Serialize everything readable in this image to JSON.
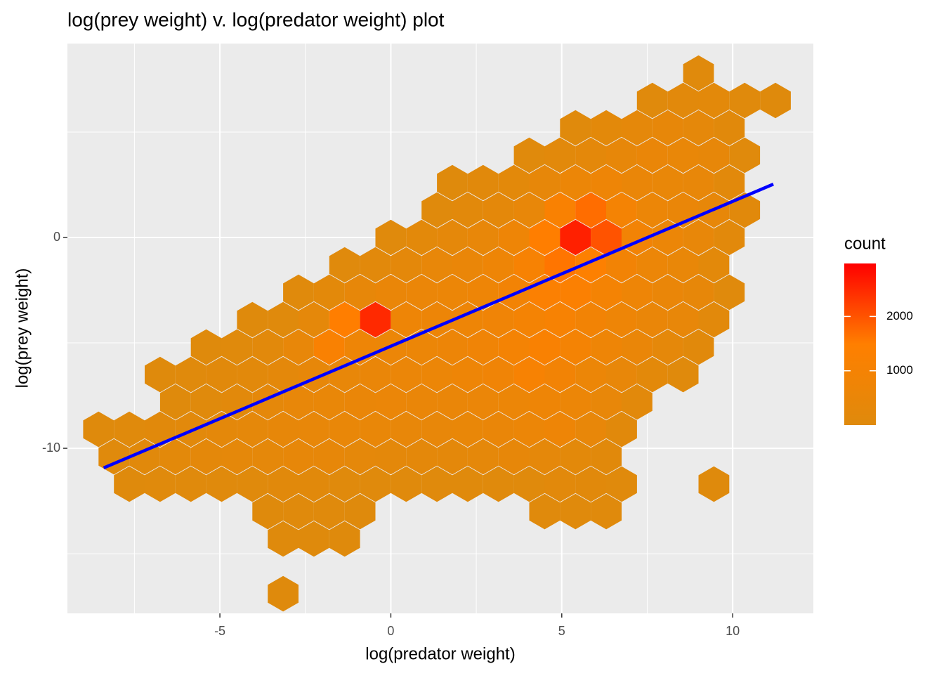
{
  "chart_data": {
    "type": "hexbin",
    "title": "log(prey weight) v. log(predator weight) plot",
    "x_label": "log(predator weight)",
    "y_label": "log(prey weight)",
    "xlim": [
      -9.46,
      12.36
    ],
    "ylim": [
      -17.83,
      9.2
    ],
    "xticks": [
      -5,
      0,
      5,
      10
    ],
    "yticks": [
      -10,
      0
    ],
    "xminor": [
      -7.5,
      -2.5,
      2.5,
      7.5
    ],
    "yminor": [
      -15,
      -5,
      5
    ],
    "grid": true,
    "legend": {
      "title": "count",
      "position": "right",
      "limits": [
        1,
        2975
      ],
      "ticks": [
        1000,
        2000
      ],
      "colors": [
        "#df8a0c",
        "#ff7f00",
        "#ff0000"
      ]
    },
    "rows": [
      {
        "y": 7.8,
        "x": [
          9.0
        ],
        "counts": [
          60
        ]
      },
      {
        "y": 6.5,
        "x": [
          7.65,
          8.55,
          9.45,
          10.35,
          11.25
        ],
        "counts": [
          40,
          150,
          200,
          30,
          10
        ]
      },
      {
        "y": 5.2,
        "x": [
          5.4,
          6.3,
          7.2,
          8.1,
          9.0,
          9.9
        ],
        "counts": [
          40,
          200,
          300,
          350,
          300,
          80
        ]
      },
      {
        "y": 3.9,
        "x": [
          4.05,
          4.95,
          5.85,
          6.75,
          7.65,
          8.55,
          9.45,
          10.35
        ],
        "counts": [
          30,
          150,
          250,
          350,
          500,
          450,
          350,
          60
        ]
      },
      {
        "y": 2.6,
        "x": [
          1.8,
          2.7,
          3.6,
          4.5,
          5.4,
          6.3,
          7.2,
          8.1,
          9.0,
          9.9
        ],
        "counts": [
          20,
          100,
          200,
          350,
          600,
          700,
          500,
          450,
          400,
          150
        ]
      },
      {
        "y": 1.3,
        "x": [
          1.35,
          2.25,
          3.15,
          4.05,
          4.95,
          5.85,
          6.75,
          7.65,
          8.55,
          9.45,
          10.35
        ],
        "counts": [
          30,
          150,
          250,
          400,
          1200,
          1700,
          1000,
          600,
          500,
          350,
          80
        ]
      },
      {
        "y": 0,
        "x": [
          0,
          0.9,
          1.8,
          2.7,
          3.6,
          4.5,
          5.4,
          6.3,
          7.2,
          8.1,
          9.0,
          9.9
        ],
        "counts": [
          50,
          200,
          300,
          400,
          700,
          1500,
          2600,
          2000,
          900,
          600,
          400,
          150
        ]
      },
      {
        "y": -1.3,
        "x": [
          -1.35,
          -0.45,
          0.45,
          1.35,
          2.25,
          3.15,
          4.05,
          4.95,
          5.85,
          6.75,
          7.65,
          8.55,
          9.45
        ],
        "counts": [
          40,
          150,
          250,
          400,
          500,
          700,
          1100,
          1600,
          1400,
          900,
          600,
          450,
          200
        ]
      },
      {
        "y": -2.6,
        "x": [
          -2.7,
          -1.8,
          -0.9,
          0,
          0.9,
          1.8,
          2.7,
          3.6,
          4.5,
          5.4,
          6.3,
          7.2,
          8.1,
          9.0,
          9.9
        ],
        "counts": [
          30,
          200,
          350,
          500,
          550,
          600,
          700,
          900,
          1300,
          1300,
          1000,
          700,
          500,
          350,
          60
        ]
      },
      {
        "y": -3.9,
        "x": [
          -4.05,
          -3.15,
          -2.25,
          -1.35,
          -0.45,
          0.45,
          1.35,
          2.25,
          3.15,
          4.05,
          4.95,
          5.85,
          6.75,
          7.65,
          8.55,
          9.45
        ],
        "counts": [
          20,
          60,
          300,
          1500,
          2500,
          700,
          650,
          700,
          800,
          1000,
          1100,
          900,
          700,
          500,
          400,
          150
        ]
      },
      {
        "y": -5.2,
        "x": [
          -5.4,
          -4.5,
          -3.6,
          -2.7,
          -1.8,
          -0.9,
          0,
          0.9,
          1.8,
          2.7,
          3.6,
          4.5,
          5.4,
          6.3,
          7.2,
          8.1,
          9.0
        ],
        "counts": [
          20,
          40,
          150,
          400,
          1200,
          700,
          600,
          600,
          650,
          800,
          1000,
          1200,
          1000,
          700,
          500,
          300,
          100
        ]
      },
      {
        "y": -6.5,
        "x": [
          -6.75,
          -5.85,
          -4.95,
          -4.05,
          -3.15,
          -2.25,
          -1.35,
          -0.45,
          0.45,
          1.35,
          2.25,
          3.15,
          4.05,
          4.95,
          5.85,
          6.75,
          7.65,
          8.55
        ],
        "counts": [
          20,
          40,
          100,
          150,
          250,
          350,
          400,
          500,
          550,
          600,
          700,
          800,
          1100,
          900,
          600,
          400,
          200,
          60
        ]
      },
      {
        "y": -7.8,
        "x": [
          -6.3,
          -5.4,
          -4.5,
          -3.6,
          -2.7,
          -1.8,
          -0.9,
          0,
          0.9,
          1.8,
          2.7,
          3.6,
          4.5,
          5.4,
          6.3,
          7.2
        ],
        "counts": [
          20,
          60,
          150,
          300,
          400,
          450,
          500,
          550,
          500,
          500,
          550,
          600,
          700,
          600,
          400,
          150
        ]
      },
      {
        "y": -9.1,
        "x": [
          -8.55,
          -7.65,
          -6.75,
          -5.85,
          -4.95,
          -4.05,
          -3.15,
          -2.25,
          -1.35,
          -0.45,
          0.45,
          1.35,
          2.25,
          3.15,
          4.05,
          4.95,
          5.85,
          6.75
        ],
        "counts": [
          20,
          40,
          80,
          150,
          250,
          300,
          350,
          400,
          450,
          450,
          400,
          400,
          450,
          500,
          600,
          700,
          400,
          100
        ]
      },
      {
        "y": -10.4,
        "x": [
          -8.1,
          -7.2,
          -6.3,
          -5.4,
          -4.5,
          -3.6,
          -2.7,
          -1.8,
          -0.9,
          0,
          0.9,
          1.8,
          2.7,
          3.6,
          4.5,
          5.4,
          6.3
        ],
        "counts": [
          30,
          100,
          200,
          250,
          300,
          300,
          350,
          350,
          300,
          250,
          250,
          250,
          300,
          350,
          300,
          200,
          80
        ]
      },
      {
        "y": -11.7,
        "x": [
          -7.65,
          -6.75,
          -5.85,
          -4.95,
          -4.05,
          -3.15,
          -2.25,
          -1.35,
          -0.45,
          0.45,
          1.35,
          2.25,
          3.15,
          4.05,
          4.95,
          5.85,
          6.75,
          9.45
        ],
        "counts": [
          20,
          40,
          40,
          40,
          60,
          80,
          100,
          60,
          30,
          40,
          30,
          60,
          40,
          60,
          150,
          100,
          40,
          10
        ]
      },
      {
        "y": -13.0,
        "x": [
          -3.6,
          -2.7,
          -1.8,
          -0.9,
          4.5,
          5.4,
          6.3
        ],
        "counts": [
          10,
          30,
          40,
          20,
          30,
          60,
          30
        ]
      },
      {
        "y": -14.3,
        "x": [
          -3.15,
          -2.25,
          -1.35
        ],
        "counts": [
          10,
          20,
          10
        ]
      },
      {
        "y": -16.9,
        "x": [
          -3.15
        ],
        "counts": [
          5
        ]
      }
    ],
    "trend_line": {
      "x": [
        -8.4,
        11.19
      ],
      "y": [
        -10.93,
        2.53
      ],
      "color": "#0000ff"
    }
  }
}
